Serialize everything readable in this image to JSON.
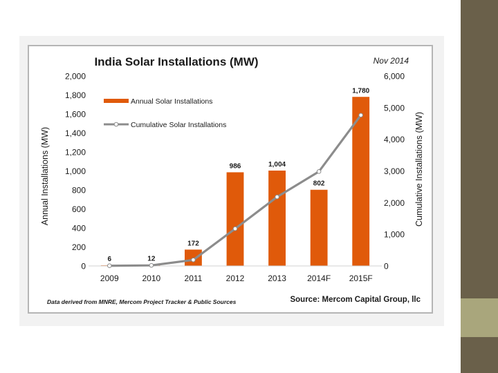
{
  "chart_data": {
    "type": "bar",
    "title": "India Solar Installations (MW)",
    "date_label": "Nov 2014",
    "categories": [
      "2009",
      "2010",
      "2011",
      "2012",
      "2013",
      "2014F",
      "2015F"
    ],
    "series": [
      {
        "name": "Annual Solar Installations",
        "kind": "bar",
        "axis": "left",
        "values": [
          6,
          12,
          172,
          986,
          1004,
          802,
          1780
        ],
        "labels": [
          "6",
          "12",
          "172",
          "986",
          "1,004",
          "802",
          "1,780"
        ]
      },
      {
        "name": "Cumulative Solar Installations",
        "kind": "line",
        "axis": "right",
        "values": [
          6,
          18,
          190,
          1176,
          2180,
          2982,
          4762
        ]
      }
    ],
    "ylabel_left": "Annual Installations (MW)",
    "ylabel_right": "Cumulative Installations (MW)",
    "ylim_left": [
      0,
      2000
    ],
    "ylim_right": [
      0,
      6000
    ],
    "yticks_left": [
      "0",
      "200",
      "400",
      "600",
      "800",
      "1,000",
      "1,200",
      "1,400",
      "1,600",
      "1,800",
      "2,000"
    ],
    "yticks_right": [
      "0",
      "1,000",
      "2,000",
      "3,000",
      "4,000",
      "5,000",
      "6,000"
    ],
    "legend_position": "top-left",
    "footnote": "Data derived from MNRE, Mercom Project Tracker & Public Sources",
    "source": "Source: Mercom Capital Group, llc",
    "colors": {
      "bar": "#e05a0a",
      "line": "#8c8c8c"
    }
  }
}
